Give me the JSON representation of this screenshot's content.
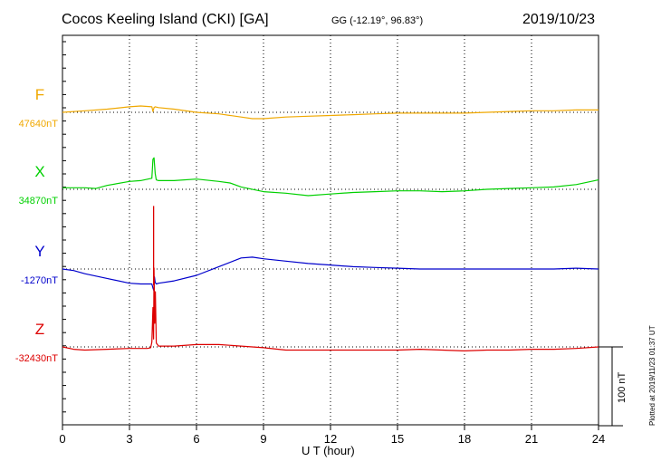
{
  "header": {
    "title": "Cocos Keeling Island (CKI)  [GA]",
    "coords": "GG (-12.19°,  96.83°)",
    "date": "2019/10/23"
  },
  "footnote": "Plotted at 2019/11/23 01:37 UT",
  "scale_label": "100 nT",
  "chart_data": {
    "type": "line",
    "title": "Cocos Keeling Island (CKI)  [GA]",
    "xlabel": "U T (hour)",
    "ylabel": "",
    "xlim": [
      0,
      24
    ],
    "xticks": [
      0,
      3,
      6,
      9,
      12,
      15,
      18,
      21,
      24
    ],
    "grid": true,
    "scale_bar_nT": 100,
    "series": [
      {
        "name": "F",
        "baseline_label": "47640nT",
        "color": "#f0a800",
        "x": [
          0,
          1,
          2,
          3,
          3.5,
          4,
          4.05,
          4.1,
          4.15,
          4.3,
          5,
          6,
          7,
          8,
          8.5,
          9,
          10,
          11,
          12,
          13,
          14,
          15,
          16,
          17,
          18,
          19,
          20,
          21,
          22,
          23,
          24
        ],
        "y": [
          0,
          2,
          4,
          7,
          8,
          7,
          1,
          6,
          7,
          6,
          4,
          0,
          -2,
          -6,
          -8,
          -8,
          -6,
          -5,
          -4,
          -3,
          -2,
          -1,
          -1,
          -1,
          -1,
          0,
          1,
          2,
          2,
          3,
          3
        ]
      },
      {
        "name": "X",
        "baseline_label": "34870nT",
        "color": "#00d000",
        "x": [
          0,
          1,
          1.5,
          2,
          3,
          3.5,
          4,
          4.05,
          4.1,
          4.15,
          4.2,
          4.3,
          5,
          6,
          7,
          7.5,
          8,
          9,
          10,
          11,
          12,
          13,
          14,
          15,
          16,
          17,
          18,
          19,
          20,
          21,
          22,
          23,
          24
        ],
        "y": [
          2,
          2,
          1,
          5,
          10,
          11,
          14,
          38,
          40,
          20,
          12,
          11,
          11,
          13,
          10,
          8,
          3,
          -3,
          -5,
          -8,
          -6,
          -4,
          -3,
          -2,
          -2,
          -3,
          -2,
          0,
          1,
          2,
          3,
          6,
          12
        ]
      },
      {
        "name": "Y",
        "baseline_label": "-1270nT",
        "color": "#0000cc",
        "x": [
          0,
          0.5,
          1,
          2,
          3,
          3.5,
          4,
          4.05,
          4.1,
          4.12,
          4.15,
          4.2,
          4.3,
          5,
          6,
          7,
          8,
          8.5,
          9,
          10,
          11,
          12,
          13,
          14,
          15,
          16,
          17,
          18,
          19,
          20,
          21,
          22,
          23,
          24
        ],
        "y": [
          0,
          -2,
          -6,
          -12,
          -18,
          -19,
          -19,
          -24,
          -28,
          -10,
          -17,
          -19,
          -18,
          -15,
          -8,
          3,
          14,
          15,
          13,
          10,
          7,
          5,
          3,
          2,
          1,
          0,
          0,
          0,
          0,
          0,
          0,
          0,
          1,
          0
        ],
        "spike_peak": 80
      },
      {
        "name": "Z",
        "baseline_label": "-32430nT",
        "color": "#dd0000",
        "x": [
          0,
          0.5,
          1,
          2,
          3,
          3.8,
          3.95,
          4.0,
          4.05,
          4.08,
          4.1,
          4.13,
          4.16,
          4.2,
          4.3,
          5,
          6,
          7,
          8,
          9,
          10,
          11,
          12,
          13,
          14,
          15,
          16,
          17,
          18,
          19,
          20,
          21,
          22,
          23,
          24
        ],
        "y": [
          0,
          -3,
          -4,
          -3,
          -2,
          -2,
          -1,
          6,
          50,
          10,
          100,
          30,
          70,
          5,
          1,
          1,
          3,
          3,
          1,
          -1,
          -4,
          -4,
          -4,
          -4,
          -4,
          -4,
          -3,
          -4,
          -5,
          -4,
          -4,
          -3,
          -3,
          -2,
          0
        ]
      }
    ]
  }
}
